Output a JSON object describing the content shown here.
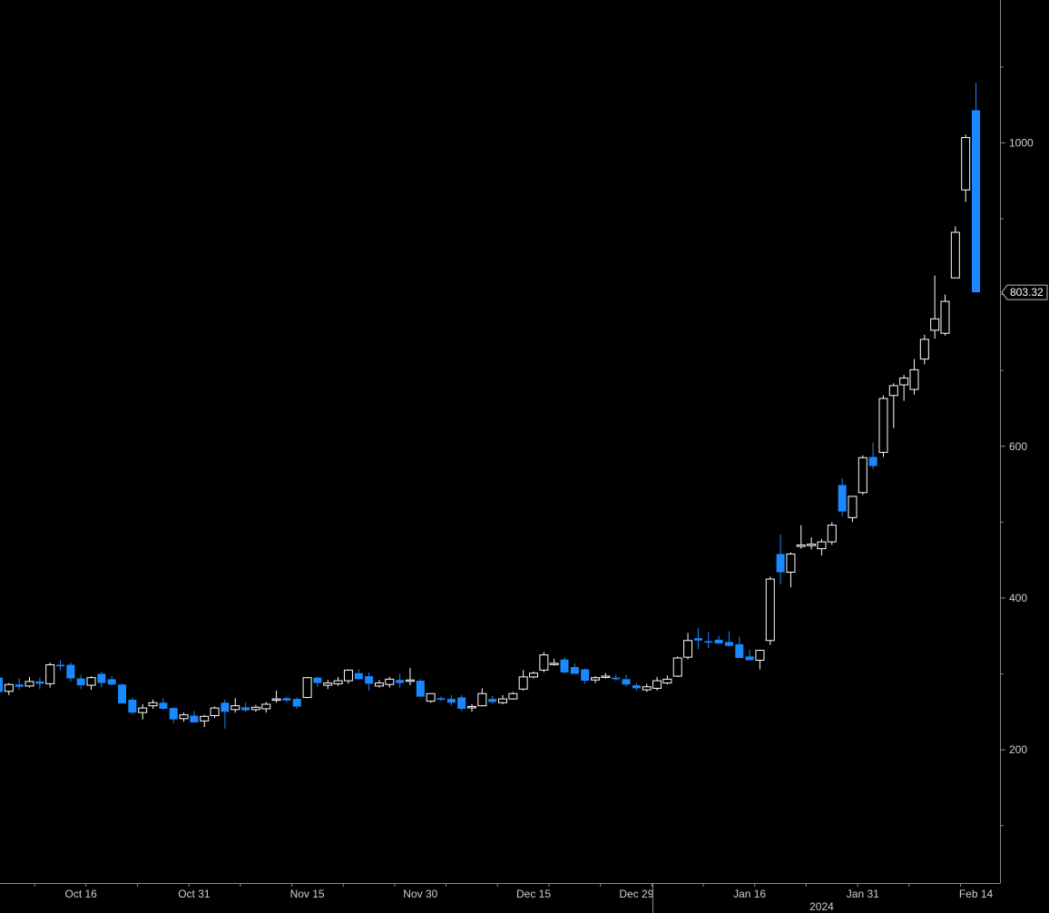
{
  "chart_data": {
    "type": "candlestick",
    "title": "",
    "xlabel": "",
    "ylabel": "",
    "ylim": [
      0,
      1150
    ],
    "y_ticks": [
      200,
      400,
      600,
      800,
      1000
    ],
    "y_tick_labels": [
      "200",
      "400",
      "600",
      "",
      "1000"
    ],
    "x_tick_labels": [
      "Oct 16",
      "Oct 31",
      "Nov 15",
      "Nov 30",
      "Dec 15",
      "Dec 29",
      "Jan 16",
      "Jan 31",
      "Feb 14"
    ],
    "x_tick_indices": [
      8,
      19,
      30,
      41,
      52,
      62,
      73,
      84,
      95
    ],
    "year_label": "2024",
    "grid": false,
    "last_price_label": "803.32",
    "colors": {
      "up": "#ffffff",
      "down": "#1a88ff",
      "background": "#000000",
      "axis": "#8a8a8a",
      "text": "#cfcfcf"
    },
    "series": [
      {
        "values": [
          [
            295,
            296,
            272,
            276
          ],
          [
            277,
            288,
            272,
            286
          ],
          [
            286,
            294,
            279,
            283
          ],
          [
            284,
            296,
            282,
            290
          ],
          [
            290,
            295,
            280,
            287
          ],
          [
            287,
            315,
            282,
            312
          ],
          [
            312,
            318,
            305,
            310
          ],
          [
            312,
            315,
            290,
            294
          ],
          [
            294,
            299,
            280,
            285
          ],
          [
            285,
            297,
            279,
            295
          ],
          [
            300,
            303,
            282,
            288
          ],
          [
            293,
            297,
            285,
            286
          ],
          [
            286,
            287,
            261,
            261
          ],
          [
            266,
            269,
            247,
            249
          ],
          [
            249,
            260,
            240,
            255
          ],
          [
            258,
            266,
            254,
            262
          ],
          [
            262,
            268,
            253,
            254
          ],
          [
            255,
            256,
            235,
            240
          ],
          [
            241,
            249,
            237,
            246
          ],
          [
            245,
            251,
            236,
            236
          ],
          [
            238,
            246,
            230,
            244
          ],
          [
            245,
            257,
            242,
            255
          ],
          [
            262,
            266,
            228,
            250
          ],
          [
            253,
            268,
            249,
            258
          ],
          [
            256,
            262,
            250,
            252
          ],
          [
            253,
            259,
            250,
            256
          ],
          [
            254,
            263,
            249,
            260
          ],
          [
            266,
            278,
            262,
            267
          ],
          [
            268,
            270,
            263,
            265
          ],
          [
            267,
            269,
            254,
            257
          ],
          [
            269,
            296,
            268,
            295
          ],
          [
            295,
            296,
            283,
            288
          ],
          [
            285,
            292,
            280,
            288
          ],
          [
            287,
            296,
            284,
            291
          ],
          [
            291,
            306,
            287,
            305
          ],
          [
            301,
            306,
            293,
            293
          ],
          [
            297,
            302,
            278,
            287
          ],
          [
            284,
            292,
            282,
            288
          ],
          [
            286,
            296,
            282,
            293
          ],
          [
            292,
            300,
            282,
            288
          ],
          [
            292,
            308,
            285,
            292
          ],
          [
            291,
            293,
            270,
            270
          ],
          [
            264,
            274,
            262,
            274
          ],
          [
            268,
            270,
            264,
            266
          ],
          [
            267,
            272,
            258,
            262
          ],
          [
            269,
            272,
            251,
            254
          ],
          [
            256,
            260,
            250,
            257
          ],
          [
            258,
            281,
            257,
            274
          ],
          [
            267,
            271,
            261,
            263
          ],
          [
            262,
            272,
            260,
            267
          ],
          [
            267,
            276,
            266,
            274
          ],
          [
            280,
            305,
            278,
            296
          ],
          [
            296,
            303,
            294,
            301
          ],
          [
            305,
            329,
            302,
            325
          ],
          [
            314,
            320,
            311,
            314
          ],
          [
            319,
            322,
            300,
            302
          ],
          [
            309,
            314,
            300,
            300
          ],
          [
            306,
            307,
            287,
            291
          ],
          [
            292,
            297,
            288,
            295
          ],
          [
            296,
            301,
            294,
            297
          ],
          [
            295,
            299,
            291,
            293
          ],
          [
            293,
            299,
            283,
            286
          ],
          [
            285,
            288,
            278,
            281
          ],
          [
            279,
            287,
            276,
            283
          ],
          [
            281,
            296,
            278,
            291
          ],
          [
            288,
            298,
            286,
            293
          ],
          [
            297,
            323,
            296,
            321
          ],
          [
            322,
            354,
            319,
            344
          ],
          [
            347,
            360,
            333,
            344
          ],
          [
            343,
            355,
            334,
            342
          ],
          [
            345,
            350,
            342,
            340
          ],
          [
            342,
            356,
            336,
            337
          ],
          [
            339,
            349,
            321,
            321
          ],
          [
            323,
            332,
            320,
            318
          ],
          [
            318,
            332,
            306,
            331
          ],
          [
            344,
            428,
            338,
            425
          ],
          [
            458,
            484,
            418,
            434
          ],
          [
            434,
            460,
            414,
            458
          ],
          [
            468,
            496,
            465,
            470
          ],
          [
            469,
            480,
            464,
            471
          ],
          [
            465,
            478,
            456,
            474
          ],
          [
            474,
            500,
            470,
            496
          ],
          [
            549,
            558,
            508,
            514
          ],
          [
            506,
            534,
            500,
            534
          ],
          [
            539,
            588,
            536,
            585
          ],
          [
            586,
            605,
            570,
            574
          ],
          [
            592,
            667,
            586,
            663
          ],
          [
            667,
            683,
            624,
            680
          ],
          [
            681,
            694,
            660,
            690
          ],
          [
            675,
            715,
            668,
            701
          ],
          [
            715,
            747,
            708,
            741
          ],
          [
            753,
            825,
            742,
            768
          ],
          [
            749,
            800,
            746,
            791
          ],
          [
            822,
            890,
            822,
            882
          ],
          [
            938,
            1011,
            922,
            1007
          ],
          [
            1043,
            1079,
            804,
            803
          ]
        ]
      }
    ]
  }
}
